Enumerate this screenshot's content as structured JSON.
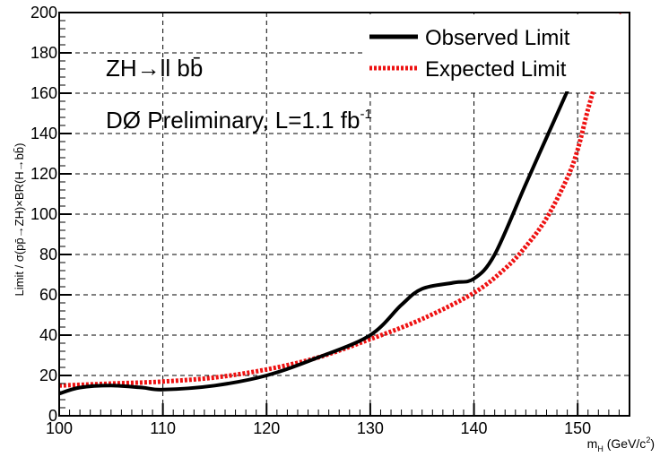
{
  "colors": {
    "observed": "#000000",
    "expected": "#ee1111",
    "grid": "#000000",
    "frame": "#000000"
  },
  "chart_data": {
    "type": "line",
    "title": "",
    "xlabel_main": "m",
    "xlabel_sub": "H",
    "xlabel_unit": " (GeV/c",
    "xlabel_sup": "2",
    "xlabel_close": ")",
    "ylabel": "Limit / σ(pp̄→ZH)×BR(H→bb̄)",
    "xlim": [
      100,
      155
    ],
    "ylim": [
      0,
      200
    ],
    "xticks": [
      100,
      110,
      120,
      130,
      140,
      150
    ],
    "yticks": [
      0,
      20,
      40,
      60,
      80,
      100,
      120,
      140,
      160,
      180,
      200
    ],
    "grid": true,
    "legend_position": "top-right",
    "annotations": {
      "process": "ZH→ll bb̄",
      "experiment": "DØ Preliminary, L=1.1 fb",
      "experiment_sup": "-1"
    },
    "series": [
      {
        "name": "Observed Limit",
        "style": "solid",
        "x": [
          100,
          102,
          105,
          108,
          110,
          115,
          120,
          125,
          130,
          133,
          135,
          138,
          140,
          142,
          145,
          147,
          149
        ],
        "y": [
          11,
          14,
          15,
          14,
          13,
          15,
          20,
          29,
          40,
          55,
          63,
          66,
          68,
          80,
          115,
          138,
          161
        ]
      },
      {
        "name": "Expected Limit",
        "style": "dotted",
        "x": [
          100,
          105,
          110,
          115,
          120,
          125,
          130,
          135,
          140,
          143,
          145,
          147,
          149,
          150,
          151,
          152,
          153,
          154,
          154.5
        ],
        "y": [
          15,
          16,
          17,
          19,
          23,
          29,
          38,
          48,
          61,
          73,
          84,
          98,
          118,
          132,
          152,
          170,
          188,
          200,
          206
        ]
      }
    ]
  }
}
